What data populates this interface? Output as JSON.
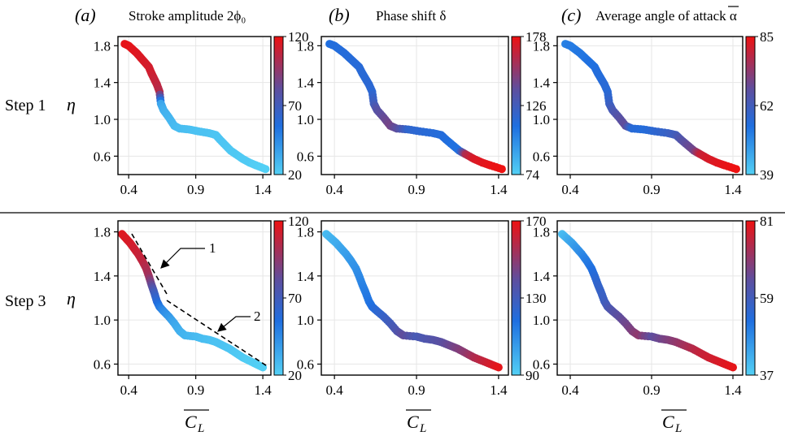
{
  "headers": [
    {
      "letter": "(a)",
      "text": "Stroke amplitude 2ϕ₀"
    },
    {
      "letter": "(b)",
      "text": "Phase shift δ"
    },
    {
      "letter": "(c)",
      "text": "Average angle of attack α"
    }
  ],
  "rows": [
    {
      "label": "Step 1",
      "ylabel": "η"
    },
    {
      "label": "Step 3",
      "ylabel": "η"
    }
  ],
  "xlabel_main": "C",
  "xlabel_sub": "L",
  "annotations": [
    {
      "text": "1"
    },
    {
      "text": "2"
    }
  ],
  "colors": {
    "low": "#53d0f5",
    "mid": "#1f6fe0",
    "high": "#ee1111",
    "purple": "#5e4e9e"
  },
  "chart_data": [
    {
      "type": "scatter",
      "panel": "a-step1",
      "xticks": [
        "0.4",
        "0.9",
        "1.4"
      ],
      "yticks": [
        "0.6",
        "1.0",
        "1.4",
        "1.8"
      ],
      "xlim": [
        0.32,
        1.46
      ],
      "ylim": [
        0.4,
        1.9
      ],
      "grid": true,
      "colorbar": {
        "min": 20,
        "max": 120,
        "ticks": [
          "20",
          "70",
          "120"
        ]
      },
      "x": [
        0.37,
        0.4,
        0.43,
        0.46,
        0.49,
        0.52,
        0.55,
        0.57,
        0.59,
        0.61,
        0.63,
        0.64,
        0.66,
        0.7,
        0.74,
        0.78,
        0.85,
        0.92,
        1.0,
        1.05,
        1.08,
        1.12,
        1.16,
        1.2,
        1.25,
        1.3,
        1.35,
        1.42
      ],
      "y": [
        1.82,
        1.8,
        1.76,
        1.72,
        1.67,
        1.62,
        1.57,
        1.5,
        1.44,
        1.38,
        1.3,
        1.17,
        1.1,
        1.02,
        0.93,
        0.9,
        0.89,
        0.87,
        0.85,
        0.83,
        0.78,
        0.72,
        0.66,
        0.62,
        0.57,
        0.53,
        0.5,
        0.46
      ],
      "c": [
        118,
        118,
        117,
        116,
        115,
        114,
        113,
        112,
        110,
        108,
        105,
        36,
        32,
        30,
        28,
        27,
        26,
        25,
        25,
        24,
        24,
        24,
        23,
        23,
        22,
        22,
        21,
        20
      ]
    },
    {
      "type": "scatter",
      "panel": "b-step1",
      "xticks": [
        "0.4",
        "0.9",
        "1.4"
      ],
      "yticks": [
        "0.6",
        "1.0",
        "1.4",
        "1.8"
      ],
      "xlim": [
        0.32,
        1.46
      ],
      "ylim": [
        0.4,
        1.9
      ],
      "grid": true,
      "colorbar": {
        "min": 74,
        "max": 178,
        "ticks": [
          "74",
          "126",
          "178"
        ]
      },
      "x": [
        0.37,
        0.4,
        0.43,
        0.46,
        0.49,
        0.52,
        0.55,
        0.57,
        0.59,
        0.61,
        0.63,
        0.64,
        0.66,
        0.7,
        0.74,
        0.78,
        0.85,
        0.92,
        1.0,
        1.05,
        1.08,
        1.12,
        1.16,
        1.2,
        1.25,
        1.3,
        1.35,
        1.42
      ],
      "y": [
        1.82,
        1.8,
        1.76,
        1.72,
        1.67,
        1.62,
        1.57,
        1.5,
        1.44,
        1.38,
        1.3,
        1.17,
        1.1,
        1.02,
        0.93,
        0.9,
        0.89,
        0.87,
        0.85,
        0.83,
        0.78,
        0.72,
        0.66,
        0.62,
        0.57,
        0.53,
        0.5,
        0.46
      ],
      "c": [
        110,
        112,
        112,
        113,
        113,
        114,
        114,
        115,
        115,
        116,
        116,
        125,
        135,
        140,
        145,
        138,
        118,
        116,
        114,
        113,
        112,
        110,
        110,
        160,
        172,
        174,
        176,
        178
      ]
    },
    {
      "type": "scatter",
      "panel": "c-step1",
      "xticks": [
        "0.4",
        "0.9",
        "1.4"
      ],
      "yticks": [
        "0.6",
        "1.0",
        "1.4",
        "1.8"
      ],
      "xlim": [
        0.32,
        1.46
      ],
      "ylim": [
        0.4,
        1.9
      ],
      "grid": true,
      "colorbar": {
        "min": 39,
        "max": 85,
        "ticks": [
          "39",
          "62",
          "85"
        ]
      },
      "x": [
        0.37,
        0.4,
        0.43,
        0.46,
        0.49,
        0.52,
        0.55,
        0.57,
        0.59,
        0.61,
        0.63,
        0.64,
        0.66,
        0.7,
        0.74,
        0.78,
        0.85,
        0.92,
        1.0,
        1.05,
        1.08,
        1.12,
        1.16,
        1.2,
        1.25,
        1.3,
        1.35,
        1.42
      ],
      "y": [
        1.82,
        1.8,
        1.76,
        1.72,
        1.67,
        1.62,
        1.57,
        1.5,
        1.44,
        1.38,
        1.3,
        1.17,
        1.1,
        1.02,
        0.93,
        0.9,
        0.89,
        0.87,
        0.85,
        0.83,
        0.78,
        0.72,
        0.66,
        0.62,
        0.57,
        0.53,
        0.5,
        0.46
      ],
      "c": [
        52,
        53,
        53,
        54,
        54,
        55,
        55,
        56,
        56,
        57,
        57,
        60,
        63,
        66,
        68,
        57,
        56,
        58,
        60,
        62,
        65,
        68,
        70,
        80,
        82,
        83,
        84,
        85
      ]
    },
    {
      "type": "scatter",
      "panel": "a-step3",
      "xticks": [
        "0.4",
        "0.9",
        "1.4"
      ],
      "yticks": [
        "0.6",
        "1.0",
        "1.4",
        "1.8"
      ],
      "xlim": [
        0.32,
        1.46
      ],
      "ylim": [
        0.5,
        1.9
      ],
      "grid": true,
      "colorbar": {
        "min": 20,
        "max": 120,
        "ticks": [
          "20",
          "70",
          "120"
        ]
      },
      "x": [
        0.35,
        0.38,
        0.41,
        0.44,
        0.47,
        0.5,
        0.53,
        0.55,
        0.57,
        0.59,
        0.61,
        0.63,
        0.66,
        0.7,
        0.74,
        0.78,
        0.82,
        0.9,
        0.95,
        1.0,
        1.05,
        1.1,
        1.15,
        1.2,
        1.25,
        1.3,
        1.35,
        1.4
      ],
      "y": [
        1.78,
        1.74,
        1.7,
        1.65,
        1.6,
        1.54,
        1.47,
        1.4,
        1.32,
        1.25,
        1.17,
        1.12,
        1.08,
        1.03,
        0.97,
        0.9,
        0.86,
        0.85,
        0.83,
        0.82,
        0.8,
        0.77,
        0.74,
        0.7,
        0.66,
        0.63,
        0.6,
        0.57
      ],
      "c": [
        116,
        115,
        114,
        112,
        110,
        108,
        104,
        100,
        85,
        70,
        60,
        52,
        45,
        40,
        35,
        32,
        30,
        28,
        27,
        26,
        25,
        25,
        24,
        23,
        22,
        21,
        21,
        20
      ]
    },
    {
      "type": "scatter",
      "panel": "b-step3",
      "xticks": [
        "0.4",
        "0.9",
        "1.4"
      ],
      "yticks": [
        "0.6",
        "1.0",
        "1.4",
        "1.8"
      ],
      "xlim": [
        0.32,
        1.46
      ],
      "ylim": [
        0.5,
        1.9
      ],
      "grid": true,
      "colorbar": {
        "min": 90,
        "max": 170,
        "ticks": [
          "90",
          "130",
          "170"
        ]
      },
      "x": [
        0.35,
        0.38,
        0.41,
        0.44,
        0.47,
        0.5,
        0.53,
        0.55,
        0.57,
        0.59,
        0.61,
        0.63,
        0.66,
        0.7,
        0.74,
        0.78,
        0.82,
        0.9,
        0.95,
        1.0,
        1.05,
        1.1,
        1.15,
        1.2,
        1.25,
        1.3,
        1.35,
        1.4
      ],
      "y": [
        1.78,
        1.74,
        1.7,
        1.65,
        1.6,
        1.54,
        1.47,
        1.4,
        1.32,
        1.25,
        1.17,
        1.12,
        1.08,
        1.03,
        0.97,
        0.9,
        0.86,
        0.85,
        0.83,
        0.82,
        0.8,
        0.77,
        0.74,
        0.7,
        0.66,
        0.63,
        0.6,
        0.57
      ],
      "c": [
        96,
        98,
        100,
        102,
        104,
        106,
        108,
        110,
        112,
        114,
        116,
        118,
        122,
        126,
        130,
        134,
        140,
        132,
        134,
        136,
        138,
        142,
        146,
        150,
        156,
        160,
        164,
        168
      ]
    },
    {
      "type": "scatter",
      "panel": "c-step3",
      "xticks": [
        "0.4",
        "0.9",
        "1.4"
      ],
      "yticks": [
        "0.6",
        "1.0",
        "1.4",
        "1.8"
      ],
      "xlim": [
        0.32,
        1.46
      ],
      "ylim": [
        0.5,
        1.9
      ],
      "grid": true,
      "colorbar": {
        "min": 37,
        "max": 81,
        "ticks": [
          "37",
          "59",
          "81"
        ]
      },
      "x": [
        0.35,
        0.38,
        0.41,
        0.44,
        0.47,
        0.5,
        0.53,
        0.55,
        0.57,
        0.59,
        0.61,
        0.63,
        0.66,
        0.7,
        0.74,
        0.78,
        0.82,
        0.9,
        0.95,
        1.0,
        1.05,
        1.1,
        1.15,
        1.2,
        1.25,
        1.3,
        1.35,
        1.4
      ],
      "y": [
        1.78,
        1.74,
        1.7,
        1.65,
        1.6,
        1.54,
        1.47,
        1.4,
        1.32,
        1.25,
        1.17,
        1.12,
        1.08,
        1.03,
        0.97,
        0.9,
        0.86,
        0.85,
        0.83,
        0.82,
        0.8,
        0.77,
        0.74,
        0.7,
        0.66,
        0.63,
        0.6,
        0.57
      ],
      "c": [
        40,
        42,
        44,
        46,
        48,
        50,
        52,
        54,
        56,
        57,
        58,
        60,
        62,
        64,
        66,
        68,
        70,
        64,
        66,
        68,
        70,
        72,
        74,
        76,
        77,
        78,
        79,
        80
      ]
    }
  ]
}
